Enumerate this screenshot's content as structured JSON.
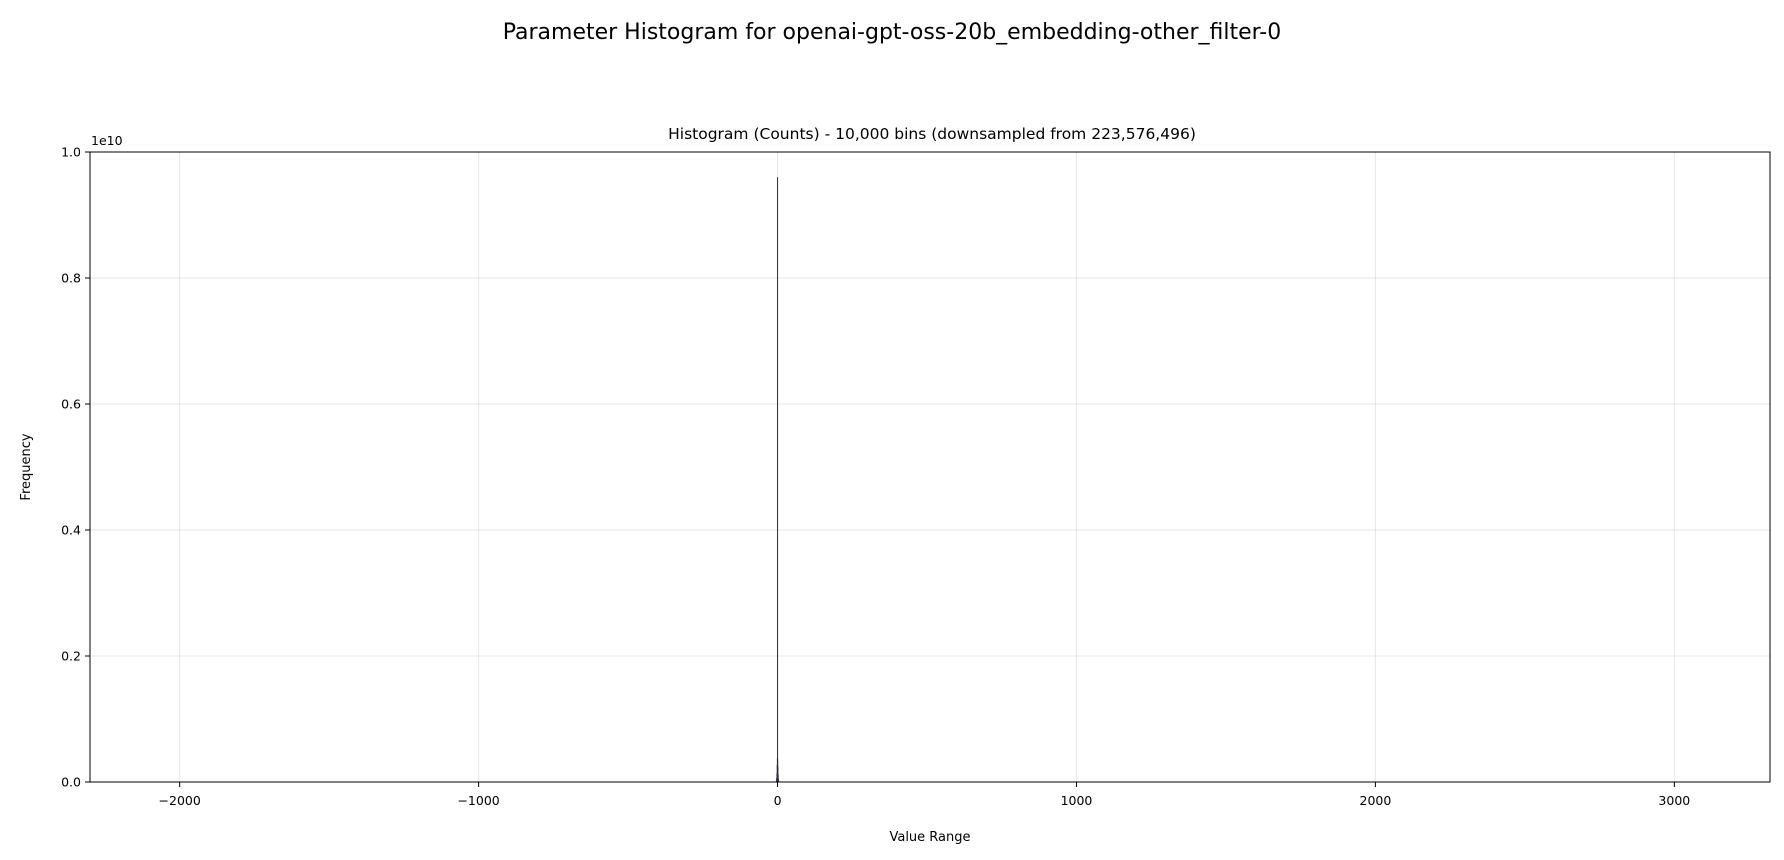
{
  "chart_data": {
    "type": "bar",
    "suptitle": "Parameter Histogram for openai-gpt-oss-20b_embedding-other_filter-0",
    "title": "Histogram (Counts) - 10,000 bins (downsampled from 223,576,496)",
    "xlabel": "Value Range",
    "ylabel": "Frequency",
    "y_offset_label": "1e10",
    "xlim": [
      -2300,
      3320
    ],
    "ylim": [
      0,
      10000000000
    ],
    "xticks": [
      -2000,
      -1000,
      0,
      1000,
      2000,
      3000
    ],
    "xtick_labels": [
      "−2000",
      "−1000",
      "0",
      "1000",
      "2000",
      "3000"
    ],
    "yticks": [
      0,
      2000000000,
      4000000000,
      6000000000,
      8000000000,
      10000000000
    ],
    "ytick_labels": [
      "0.0",
      "0.2",
      "0.4",
      "0.6",
      "0.8",
      "1.0"
    ],
    "grid": true,
    "bar_color": "#2b2b3a",
    "bins": [
      {
        "x": -4.0,
        "y": 20000000
      },
      {
        "x": -3.0,
        "y": 60000000
      },
      {
        "x": -2.0,
        "y": 140000000
      },
      {
        "x": -1.0,
        "y": 270000000
      },
      {
        "x": -0.5,
        "y": 380000000
      },
      {
        "x": 0.0,
        "y": 9600000000
      },
      {
        "x": 0.5,
        "y": 360000000
      },
      {
        "x": 1.0,
        "y": 250000000
      },
      {
        "x": 2.0,
        "y": 120000000
      },
      {
        "x": 3.0,
        "y": 50000000
      },
      {
        "x": 4.0,
        "y": 15000000
      }
    ]
  }
}
